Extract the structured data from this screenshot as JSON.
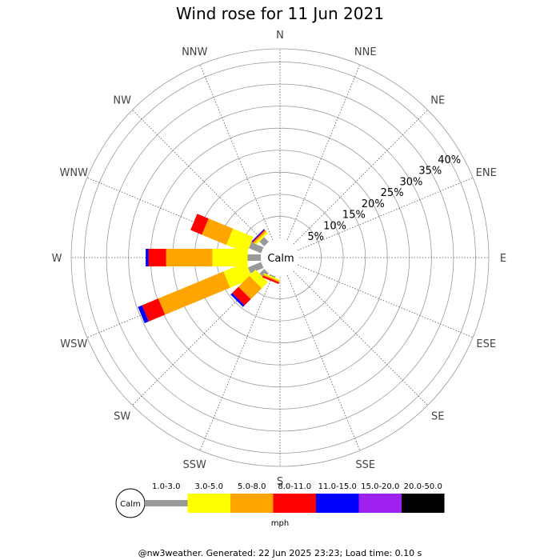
{
  "chart_data": {
    "type": "wind-rose",
    "title": "Wind rose for 11 Jun 2021",
    "unit": "mph",
    "calm_label": "Calm",
    "directions": [
      "N",
      "NNE",
      "NE",
      "ENE",
      "E",
      "ESE",
      "SE",
      "SSE",
      "S",
      "SSW",
      "SW",
      "WSW",
      "W",
      "WNW",
      "NW",
      "NNW"
    ],
    "radial_ticks": [
      5,
      10,
      15,
      20,
      25,
      30,
      35,
      40
    ],
    "radial_tick_labels": [
      "5%",
      "10%",
      "15%",
      "20%",
      "25%",
      "30%",
      "35%",
      "40%"
    ],
    "radial_max": 43,
    "speed_bins": [
      {
        "label": "1.0-3.0",
        "color": "#999999"
      },
      {
        "label": "3.0-5.0",
        "color": "#ffff00"
      },
      {
        "label": "5.0-8.0",
        "color": "#ffa500"
      },
      {
        "label": "8.0-11.0",
        "color": "#ff0000"
      },
      {
        "label": "11.0-15.0",
        "color": "#0000ff"
      },
      {
        "label": "15.0-20.0",
        "color": "#a020f0"
      },
      {
        "label": "20.0-50.0",
        "color": "#000000"
      }
    ],
    "series": [
      {
        "direction": "NW",
        "values": [
          1.5,
          0.5,
          0.4,
          0.2,
          0.2,
          0,
          0
        ]
      },
      {
        "direction": "WNW",
        "values": [
          3.0,
          5.0,
          6.0,
          2.8,
          0,
          0,
          0
        ]
      },
      {
        "direction": "W",
        "values": [
          3.0,
          8.0,
          10.5,
          4.0,
          0.6,
          0,
          0
        ]
      },
      {
        "direction": "WSW",
        "values": [
          3.2,
          5.5,
          16.0,
          4.0,
          1.0,
          0,
          0
        ]
      },
      {
        "direction": "SW",
        "values": [
          1.5,
          2.0,
          3.5,
          2.0,
          0.5,
          0,
          0
        ]
      },
      {
        "direction": "SSW",
        "values": [
          0.3,
          0.3,
          0.3,
          0.4,
          0,
          0,
          0
        ]
      }
    ]
  },
  "footer": "@nw3weather. Generated: 22 Jun 2025 23:23; Load time: 0.10 s"
}
